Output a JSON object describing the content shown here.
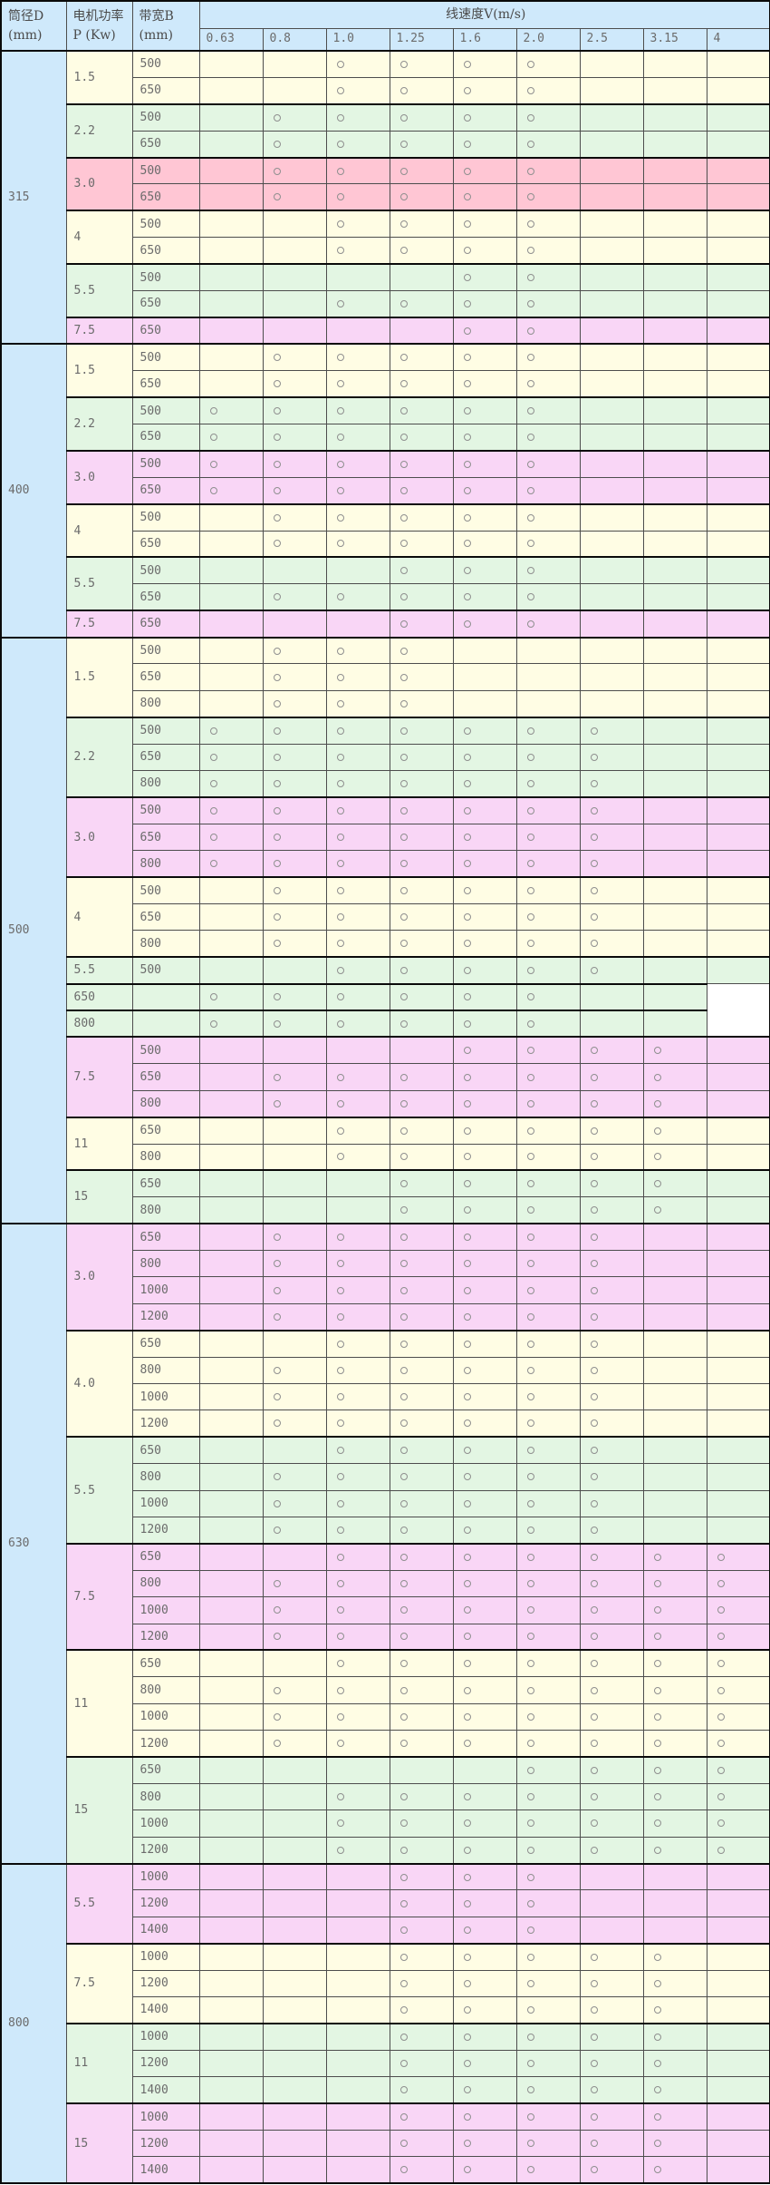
{
  "page": {
    "background": "#ffffff"
  },
  "table": {
    "title_cells": {
      "diameter": "筒径D (mm)",
      "power": "电机功率P (Kw)",
      "width": "带宽B (mm)",
      "speed": "线速度V(m/s)"
    },
    "speed_ticks": [
      "0.63",
      "0.8",
      "1.0",
      "1.25",
      "1.6",
      "2.0",
      "2.5",
      "3.15",
      "4"
    ],
    "marker": "○",
    "colors": {
      "header_blue": "#cfe9fb",
      "yellow": "#fffde4",
      "green": "#e3f6e3",
      "pink": "#f9d6f6",
      "pink_strong": "#ffc6d4",
      "border": "#4d4d4d",
      "border_strong": "#0a0a0a"
    },
    "sections": [
      {
        "diameter": "315",
        "groups": [
          {
            "power": "1.5",
            "tone": "yellow",
            "rows": [
              [
                "500",
                "001111000"
              ],
              [
                "650",
                "001111000"
              ]
            ]
          },
          {
            "power": "2.2",
            "tone": "green",
            "rows": [
              [
                "500",
                "011111000"
              ],
              [
                "650",
                "011111000"
              ]
            ]
          },
          {
            "power": "3.0",
            "tone": "pink_strong",
            "rows": [
              [
                "500",
                "011111000"
              ],
              [
                "650",
                "011111000"
              ]
            ]
          },
          {
            "power": "4",
            "tone": "yellow",
            "rows": [
              [
                "500",
                "001111000"
              ],
              [
                "650",
                "001111000"
              ]
            ]
          },
          {
            "power": "5.5",
            "tone": "green",
            "rows": [
              [
                "500",
                "000011000"
              ],
              [
                "650",
                "001111000"
              ]
            ]
          },
          {
            "power": "7.5",
            "tone": "pink",
            "rows": [
              [
                "650",
                "000011000"
              ]
            ]
          }
        ]
      },
      {
        "diameter": "400",
        "groups": [
          {
            "power": "1.5",
            "tone": "yellow",
            "rows": [
              [
                "500",
                "011111000"
              ],
              [
                "650",
                "011111000"
              ]
            ]
          },
          {
            "power": "2.2",
            "tone": "green",
            "rows": [
              [
                "500",
                "111111000"
              ],
              [
                "650",
                "111111000"
              ]
            ]
          },
          {
            "power": "3.0",
            "tone": "pink",
            "rows": [
              [
                "500",
                "111111000"
              ],
              [
                "650",
                "111111000"
              ]
            ]
          },
          {
            "power": "4",
            "tone": "yellow",
            "rows": [
              [
                "500",
                "011111000"
              ],
              [
                "650",
                "011111000"
              ]
            ]
          },
          {
            "power": "5.5",
            "tone": "green",
            "rows": [
              [
                "500",
                "000111000"
              ],
              [
                "650",
                "011111000"
              ]
            ]
          },
          {
            "power": "7.5",
            "tone": "pink",
            "rows": [
              [
                "650",
                "000111000"
              ]
            ]
          }
        ]
      },
      {
        "diameter": "500",
        "groups": [
          {
            "power": "1.5",
            "tone": "yellow",
            "rows": [
              [
                "500",
                "011100000"
              ],
              [
                "650",
                "011100000"
              ],
              [
                "800",
                "011100000"
              ]
            ]
          },
          {
            "power": "2.2",
            "tone": "green",
            "rows": [
              [
                "500",
                "111111100"
              ],
              [
                "650",
                "111111100"
              ],
              [
                "800",
                "111111100"
              ]
            ]
          },
          {
            "power": "3.0",
            "tone": "pink",
            "rows": [
              [
                "500",
                "111111100"
              ],
              [
                "650",
                "111111100"
              ],
              [
                "800",
                "111111100"
              ]
            ]
          },
          {
            "power": "4",
            "tone": "yellow",
            "rows": [
              [
                "500",
                "011111100"
              ],
              [
                "650",
                "011111100"
              ],
              [
                "800",
                "011111100"
              ]
            ]
          },
          {
            "power": "5.5",
            "tone": "green",
            "rows": [
              [
                "500",
                "001111100"
              ]
            ]
          },
          {
            "shifted": true,
            "tone": "green",
            "label": "650",
            "marks": "11111100"
          },
          {
            "shifted": true,
            "tone": "green",
            "label": "800",
            "marks": "11111100"
          },
          {
            "power": "7.5",
            "tone": "pink",
            "rows": [
              [
                "500",
                "000011110"
              ],
              [
                "650",
                "011111110"
              ],
              [
                "800",
                "011111110"
              ]
            ]
          },
          {
            "power": "11",
            "tone": "yellow",
            "rows": [
              [
                "650",
                "001111110"
              ],
              [
                "800",
                "001111110"
              ]
            ]
          },
          {
            "power": "15",
            "tone": "green",
            "rows": [
              [
                "650",
                "000111110"
              ],
              [
                "800",
                "000111110"
              ]
            ]
          }
        ]
      },
      {
        "diameter": "630",
        "groups": [
          {
            "power": "3.0",
            "tone": "pink",
            "rows": [
              [
                "650",
                "011111100"
              ],
              [
                "800",
                "011111100"
              ],
              [
                "1000",
                "011111100"
              ],
              [
                "1200",
                "011111100"
              ]
            ]
          },
          {
            "power": "4.0",
            "tone": "yellow",
            "rows": [
              [
                "650",
                "001111100"
              ],
              [
                "800",
                "011111100"
              ],
              [
                "1000",
                "011111100"
              ],
              [
                "1200",
                "011111100"
              ]
            ]
          },
          {
            "power": "5.5",
            "tone": "green",
            "rows": [
              [
                "650",
                "001111100"
              ],
              [
                "800",
                "011111100"
              ],
              [
                "1000",
                "011111100"
              ],
              [
                "1200",
                "011111100"
              ]
            ]
          },
          {
            "power": "7.5",
            "tone": "pink",
            "rows": [
              [
                "650",
                "001111111"
              ],
              [
                "800",
                "011111111"
              ],
              [
                "1000",
                "011111111"
              ],
              [
                "1200",
                "011111111"
              ]
            ]
          },
          {
            "power": "11",
            "tone": "yellow",
            "rows": [
              [
                "650",
                "001111111"
              ],
              [
                "800",
                "011111111"
              ],
              [
                "1000",
                "011111111"
              ],
              [
                "1200",
                "011111111"
              ]
            ]
          },
          {
            "power": "15",
            "tone": "green",
            "rows": [
              [
                "650",
                "000001111"
              ],
              [
                "800",
                "001111111"
              ],
              [
                "1000",
                "001111111"
              ],
              [
                "1200",
                "001111111"
              ]
            ]
          }
        ]
      },
      {
        "diameter": "800",
        "groups": [
          {
            "power": "5.5",
            "tone": "pink",
            "rows": [
              [
                "1000",
                "000111000"
              ],
              [
                "1200",
                "000111000"
              ],
              [
                "1400",
                "000111000"
              ]
            ]
          },
          {
            "power": "7.5",
            "tone": "yellow",
            "rows": [
              [
                "1000",
                "000111110"
              ],
              [
                "1200",
                "000111110"
              ],
              [
                "1400",
                "000111110"
              ]
            ]
          },
          {
            "power": "11",
            "tone": "green",
            "rows": [
              [
                "1000",
                "000111110"
              ],
              [
                "1200",
                "000111110"
              ],
              [
                "1400",
                "000111110"
              ]
            ]
          },
          {
            "power": "15",
            "tone": "pink",
            "rows": [
              [
                "1000",
                "000111110"
              ],
              [
                "1200",
                "000111110"
              ],
              [
                "1400",
                "000111110"
              ]
            ]
          }
        ]
      }
    ]
  }
}
